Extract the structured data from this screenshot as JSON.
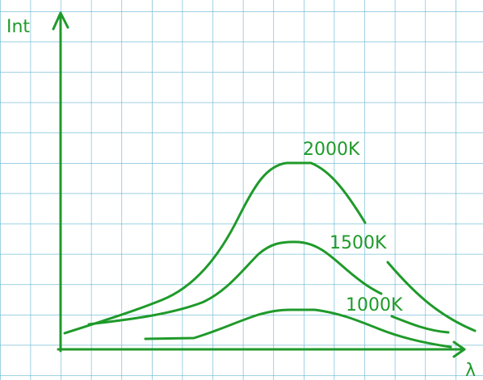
{
  "axes": {
    "y_label": "Int",
    "x_label": "λ"
  },
  "curves": [
    {
      "label": "2000K"
    },
    {
      "label": "1500K"
    },
    {
      "label": "1000K"
    }
  ]
}
